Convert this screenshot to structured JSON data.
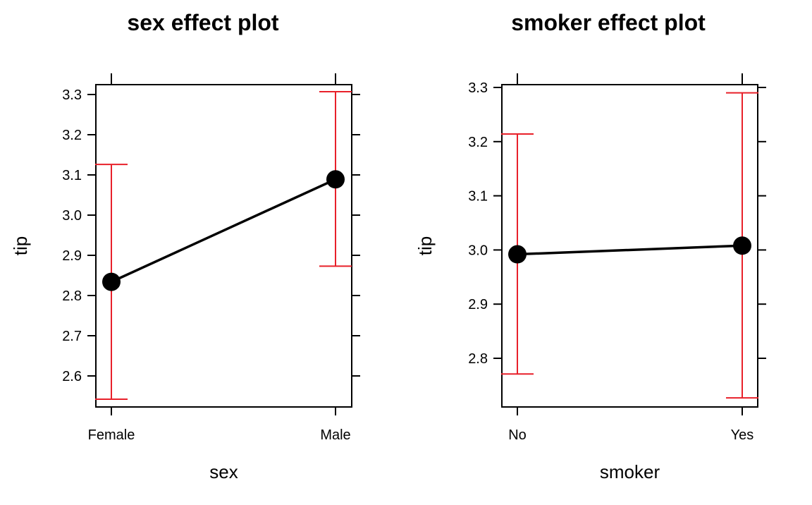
{
  "chart_data": [
    {
      "type": "line",
      "title": "sex effect plot",
      "xlabel": "sex",
      "ylabel": "tip",
      "categories": [
        "Female",
        "Male"
      ],
      "series": [
        {
          "values": [
            2.834,
            3.089
          ],
          "lower": [
            2.542,
            2.873
          ],
          "upper": [
            3.126,
            3.307
          ]
        }
      ],
      "yticks": [
        "2.6",
        "2.7",
        "2.8",
        "2.9",
        "3.0",
        "3.1",
        "3.2",
        "3.3"
      ],
      "ylim": [
        2.52,
        3.33
      ],
      "grid": false,
      "colors": {
        "line": "#000000",
        "interval": "#e8202a"
      }
    },
    {
      "type": "line",
      "title": "smoker effect plot",
      "xlabel": "smoker",
      "ylabel": "tip",
      "categories": [
        "No",
        "Yes"
      ],
      "series": [
        {
          "values": [
            2.992,
            3.008
          ],
          "lower": [
            2.771,
            2.727
          ],
          "upper": [
            3.214,
            3.29
          ]
        }
      ],
      "yticks": [
        "2.8",
        "2.9",
        "3.0",
        "3.1",
        "3.2",
        "3.3"
      ],
      "ylim": [
        2.71,
        3.31
      ],
      "grid": false,
      "colors": {
        "line": "#000000",
        "interval": "#e8202a"
      }
    }
  ]
}
